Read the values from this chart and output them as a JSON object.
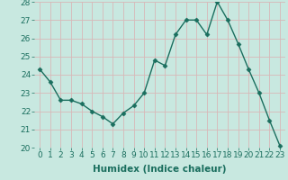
{
  "x": [
    0,
    1,
    2,
    3,
    4,
    5,
    6,
    7,
    8,
    9,
    10,
    11,
    12,
    13,
    14,
    15,
    16,
    17,
    18,
    19,
    20,
    21,
    22,
    23
  ],
  "y": [
    24.3,
    23.6,
    22.6,
    22.6,
    22.4,
    22.0,
    21.7,
    21.3,
    21.9,
    22.3,
    23.0,
    24.8,
    24.5,
    26.2,
    27.0,
    27.0,
    26.2,
    28.0,
    27.0,
    25.7,
    24.3,
    23.0,
    21.5,
    20.1
  ],
  "line_color": "#1a6e5e",
  "marker_color": "#1a6e5e",
  "bg_color": "#c8e8e0",
  "grid_color": "#d8b8b8",
  "xlabel": "Humidex (Indice chaleur)",
  "ylim": [
    20,
    28
  ],
  "xlim_min": -0.5,
  "xlim_max": 23.5,
  "yticks": [
    20,
    21,
    22,
    23,
    24,
    25,
    26,
    27,
    28
  ],
  "xticks": [
    0,
    1,
    2,
    3,
    4,
    5,
    6,
    7,
    8,
    9,
    10,
    11,
    12,
    13,
    14,
    15,
    16,
    17,
    18,
    19,
    20,
    21,
    22,
    23
  ],
  "xtick_labels": [
    "0",
    "1",
    "2",
    "3",
    "4",
    "5",
    "6",
    "7",
    "8",
    "9",
    "10",
    "11",
    "12",
    "13",
    "14",
    "15",
    "16",
    "17",
    "18",
    "19",
    "20",
    "21",
    "22",
    "23"
  ],
  "xlabel_fontsize": 7.5,
  "tick_fontsize": 6.5,
  "line_width": 1.0,
  "marker_size": 2.5
}
